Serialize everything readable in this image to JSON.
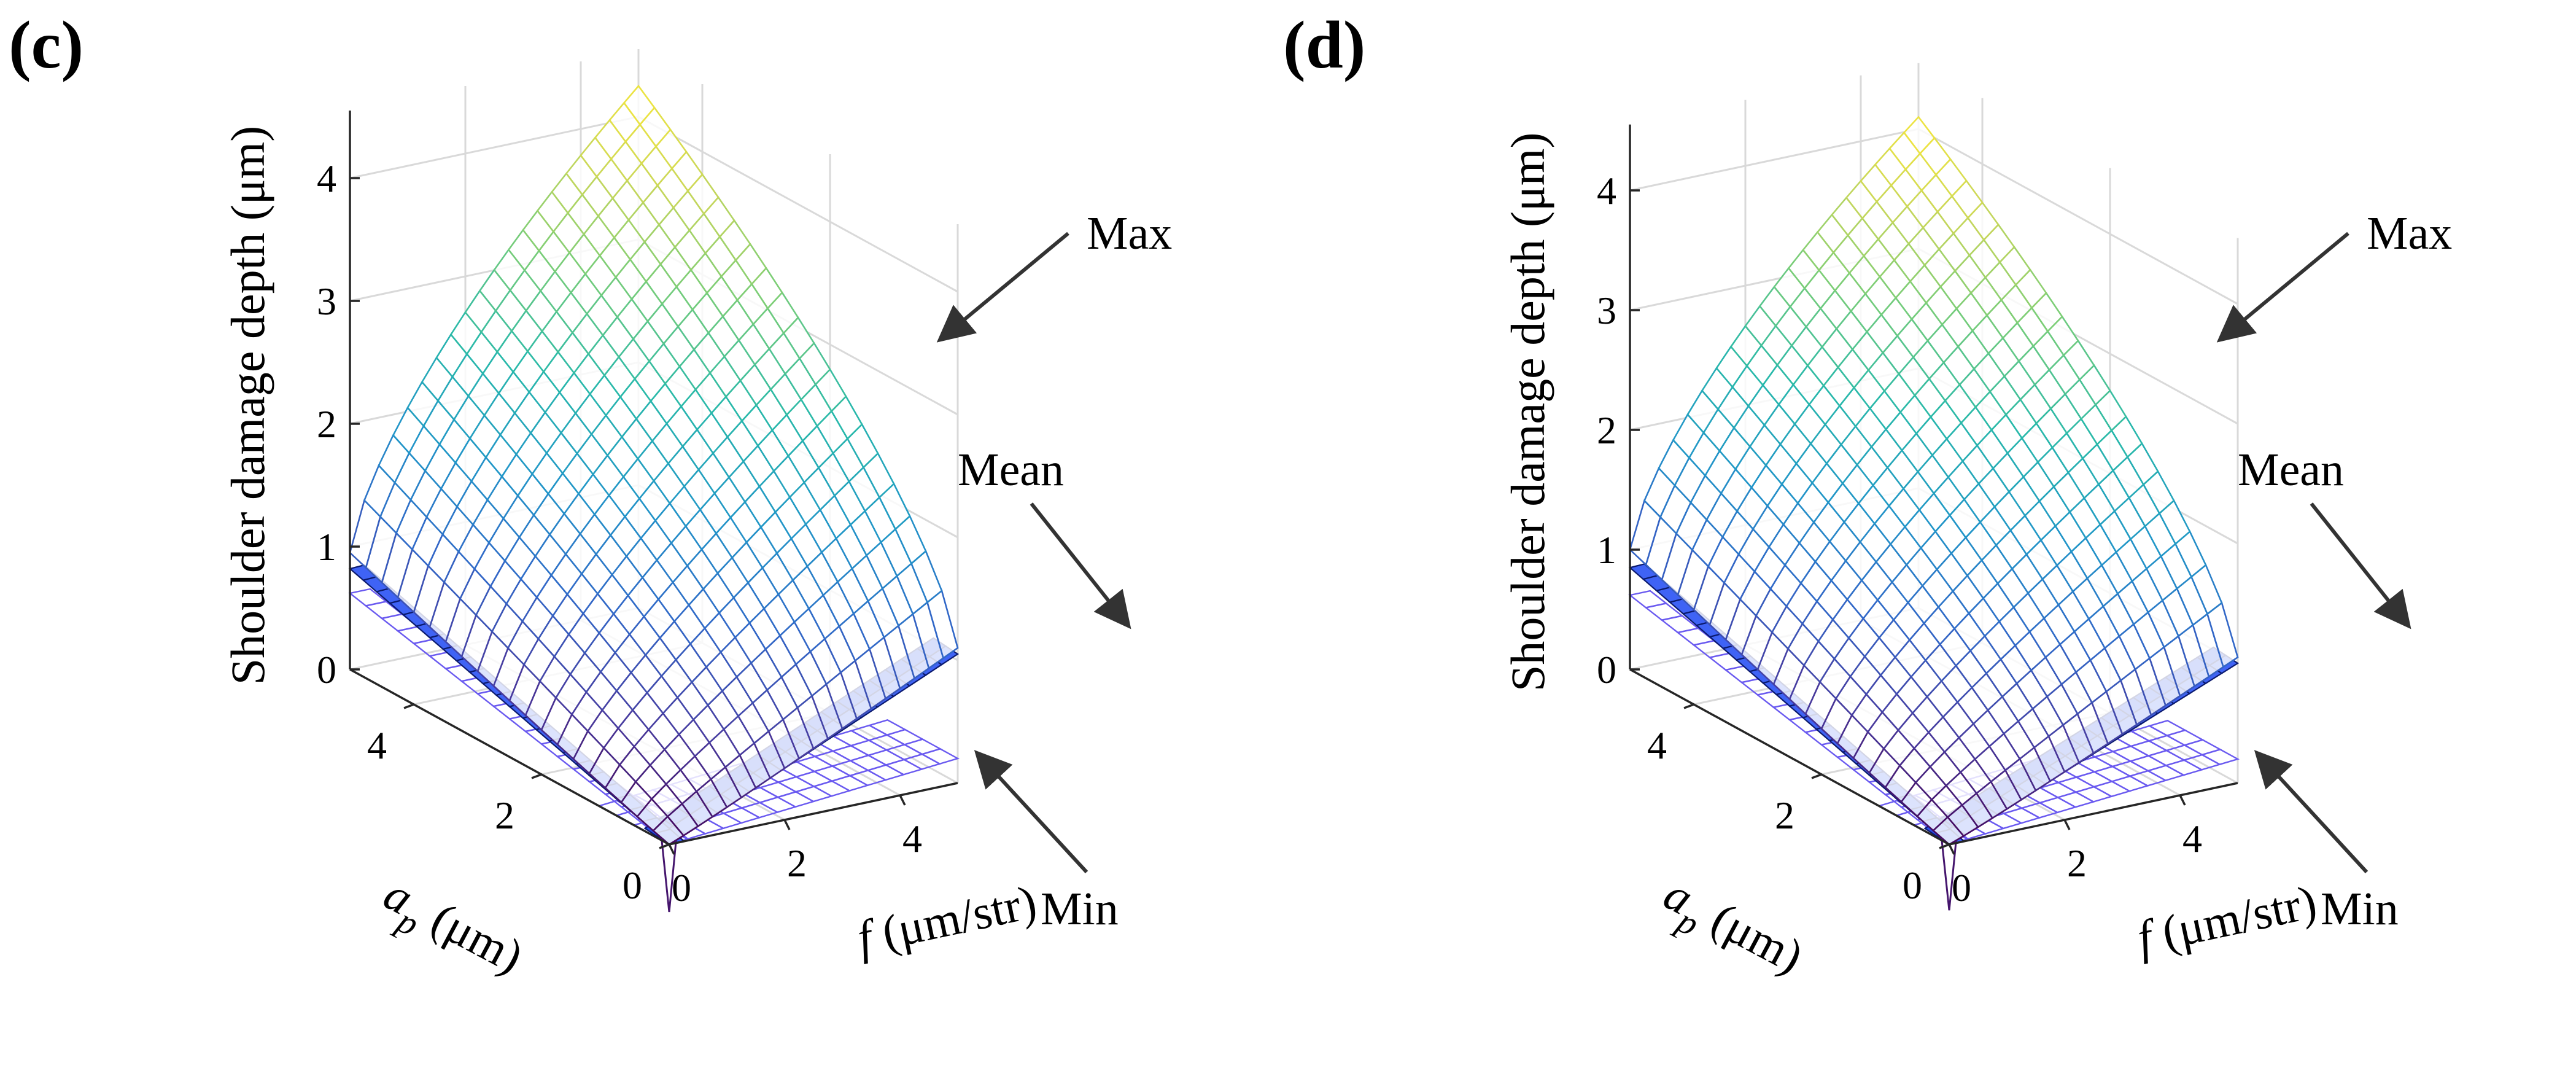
{
  "chart_data": [
    {
      "panel_label": "(c)",
      "type": "surface3d",
      "zlabel": "Shoulder damage depth (μm)",
      "ap_label": "a p (μm)",
      "f_label": "f (μm/str)",
      "ap_ticks": [
        "0",
        "2",
        "4"
      ],
      "f_ticks": [
        "0",
        "2",
        "4"
      ],
      "z_ticks": [
        "0",
        "1",
        "2",
        "3",
        "4"
      ],
      "ap_range": [
        0,
        5
      ],
      "f_range": [
        0,
        5
      ],
      "z_range": [
        0,
        4.3
      ],
      "grid": true,
      "series": [
        {
          "name": "Max",
          "color": "viridis-like mesh",
          "max_value": 4.25,
          "edge_ap_at_f0": 0.95,
          "edge_f_at_ap0": 1.1
        },
        {
          "name": "Mean",
          "color": "#2f5ff0",
          "edge_ap_at_f0": 0.82,
          "edge_f_at_ap0": 1.05
        },
        {
          "name": "Min",
          "color": "#6a5af0",
          "edge_ap_at_f0": 0.62,
          "edge_f_at_ap0": 0.2
        }
      ]
    },
    {
      "panel_label": "(d)",
      "type": "surface3d",
      "zlabel": "Shoulder damage depth (μm)",
      "ap_label": "a p (μm)",
      "f_label": "f (μm/str)",
      "ap_ticks": [
        "0",
        "2",
        "4"
      ],
      "f_ticks": [
        "0",
        "2",
        "4"
      ],
      "z_ticks": [
        "0",
        "1",
        "2",
        "3",
        "4"
      ],
      "ap_range": [
        0,
        5
      ],
      "f_range": [
        0,
        5
      ],
      "z_range": [
        0,
        4.1
      ],
      "grid": true,
      "series": [
        {
          "name": "Max",
          "color": "viridis-like mesh",
          "max_value": 4.1,
          "edge_ap_at_f0": 1.0,
          "edge_f_at_ap0": 1.05
        },
        {
          "name": "Mean",
          "color": "#2f5ff0",
          "edge_ap_at_f0": 0.85,
          "edge_f_at_ap0": 1.0
        },
        {
          "name": "Min",
          "color": "#6a5af0",
          "edge_ap_at_f0": 0.62,
          "edge_f_at_ap0": 0.2
        }
      ]
    }
  ]
}
